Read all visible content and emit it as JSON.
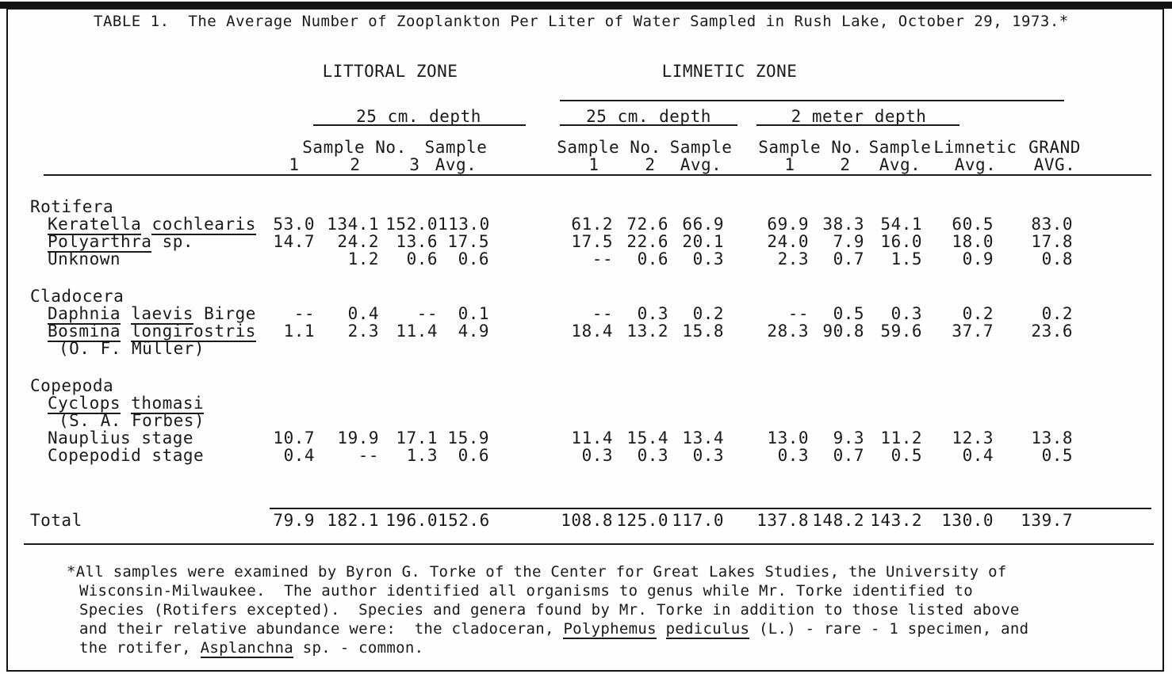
{
  "title": "TABLE 1.  The Average Number of Zooplankton Per Liter of Water Sampled in Rush Lake, October 29, 1973.*",
  "table_header": {
    "littoral_zone": "LITTORAL ZONE",
    "limnetic_zone": "LIMNETIC ZONE",
    "littoral_depth": "25 cm. depth",
    "limnetic_depth_25cm": "25 cm. depth",
    "limnetic_depth_2m": "2 meter depth",
    "littoral_sample_no": "Sample No.",
    "littoral_sample": "Sample",
    "littoral_avg": "Avg.",
    "littoral_sample_nums": [
      "1",
      "2",
      "3"
    ],
    "limnetic25_sample_no": "Sample No.",
    "limnetic25_sample": "Sample",
    "limnetic25_avg": "Avg.",
    "limnetic25_sample_nums": [
      "1",
      "2"
    ],
    "limnetic2m_sample_no": "Sample No.",
    "limnetic2m_sample": "Sample",
    "limnetic2m_avg": "Avg.",
    "limnetic2m_sample_nums": [
      "1",
      "2"
    ],
    "limnetic_avg_line1": "Limnetic",
    "limnetic_avg_line2": "Avg.",
    "grand_avg_line1": "GRAND",
    "grand_avg_line2": "AVG."
  },
  "rows": [
    {
      "type": "section",
      "indent": 0,
      "label": [
        {
          "t": "Rotifera"
        }
      ]
    },
    {
      "type": "species",
      "indent": 1,
      "label": [
        {
          "t": "Keratella",
          "u": true
        },
        {
          "t": " "
        },
        {
          "t": "cochlearis",
          "u": true
        }
      ],
      "values": [
        "53.0",
        "134.1",
        "152.0",
        "113.0",
        "61.2",
        "72.6",
        "66.9",
        "69.9",
        "38.3",
        "54.1",
        "60.5",
        "83.0"
      ]
    },
    {
      "type": "species",
      "indent": 1,
      "label": [
        {
          "t": "Polyarthra",
          "u": true
        },
        {
          "t": " sp."
        }
      ],
      "values": [
        "14.7",
        "24.2",
        "13.6",
        "17.5",
        "17.5",
        "22.6",
        "20.1",
        "24.0",
        "7.9",
        "16.0",
        "18.0",
        "17.8"
      ]
    },
    {
      "type": "species",
      "indent": 1,
      "label": [
        {
          "t": "Unknown"
        }
      ],
      "values": [
        "",
        "1.2",
        "0.6",
        "0.6",
        "--",
        "0.6",
        "0.3",
        "2.3",
        "0.7",
        "1.5",
        "0.9",
        "0.8"
      ]
    },
    {
      "type": "blank"
    },
    {
      "type": "section",
      "indent": 0,
      "label": [
        {
          "t": "Cladocera"
        }
      ]
    },
    {
      "type": "species",
      "indent": 1,
      "label": [
        {
          "t": "Daphnia",
          "u": true
        },
        {
          "t": " "
        },
        {
          "t": "laevis",
          "u": true
        },
        {
          "t": " Birge"
        }
      ],
      "values": [
        "--",
        "0.4",
        "--",
        "0.1",
        "--",
        "0.3",
        "0.2",
        "--",
        "0.5",
        "0.3",
        "0.2",
        "0.2"
      ]
    },
    {
      "type": "species",
      "indent": 1,
      "label": [
        {
          "t": "Bosmina",
          "u": true
        },
        {
          "t": " "
        },
        {
          "t": "longirostris",
          "u": true
        }
      ],
      "values": [
        "1.1",
        "2.3",
        "11.4",
        "4.9",
        "18.4",
        "13.2",
        "15.8",
        "28.3",
        "90.8",
        "59.6",
        "37.7",
        "23.6"
      ]
    },
    {
      "type": "species",
      "indent": 2,
      "label": [
        {
          "t": "(O. F. Müller)"
        }
      ]
    },
    {
      "type": "blank"
    },
    {
      "type": "section",
      "indent": 0,
      "label": [
        {
          "t": "Copepoda"
        }
      ]
    },
    {
      "type": "species",
      "indent": 1,
      "label": [
        {
          "t": "Cyclops",
          "u": true
        },
        {
          "t": " "
        },
        {
          "t": "thomasi",
          "u": true
        }
      ]
    },
    {
      "type": "species",
      "indent": 2,
      "label": [
        {
          "t": "(S. A. Forbes)"
        }
      ]
    },
    {
      "type": "species",
      "indent": 1,
      "label": [
        {
          "t": "Nauplius stage"
        }
      ],
      "values": [
        "10.7",
        "19.9",
        "17.1",
        "15.9",
        "11.4",
        "15.4",
        "13.4",
        "13.0",
        "9.3",
        "11.2",
        "12.3",
        "13.8"
      ]
    },
    {
      "type": "species",
      "indent": 1,
      "label": [
        {
          "t": "Copepodid stage"
        }
      ],
      "values": [
        "0.4",
        "--",
        "1.3",
        "0.6",
        "0.3",
        "0.3",
        "0.3",
        "0.3",
        "0.7",
        "0.5",
        "0.4",
        "0.5"
      ]
    }
  ],
  "total_row": {
    "label": [
      {
        "t": "Total"
      }
    ],
    "values": [
      "79.9",
      "182.1",
      "196.0",
      "152.6",
      "108.8",
      "125.0",
      "117.0",
      "137.8",
      "148.2",
      "143.2",
      "130.0",
      "139.7"
    ]
  },
  "footnote_lines": [
    [
      {
        "t": "*All samples were examined by Byron G. Torke of the Center for Great Lakes Studies, the University of"
      }
    ],
    [
      {
        "t": "Wisconsin-Milwaukee.  The author identified all organisms to genus while Mr. Torke identified to"
      }
    ],
    [
      {
        "t": "Species (Rotifers excepted).  Species and genera found by Mr. Torke in addition to those listed above"
      }
    ],
    [
      {
        "t": "and their relative abundance were:  the cladoceran, "
      },
      {
        "t": "Polyphemus",
        "u": true
      },
      {
        "t": " "
      },
      {
        "t": "pediculus",
        "u": true
      },
      {
        "t": " (L.) - rare - 1 specimen, and"
      }
    ],
    [
      {
        "t": "the rotifer, "
      },
      {
        "t": "Asplanchna",
        "u": true
      },
      {
        "t": " sp. - common."
      }
    ]
  ],
  "colors": {
    "ink": "#1a1a1a",
    "paper": "#fefefe"
  }
}
